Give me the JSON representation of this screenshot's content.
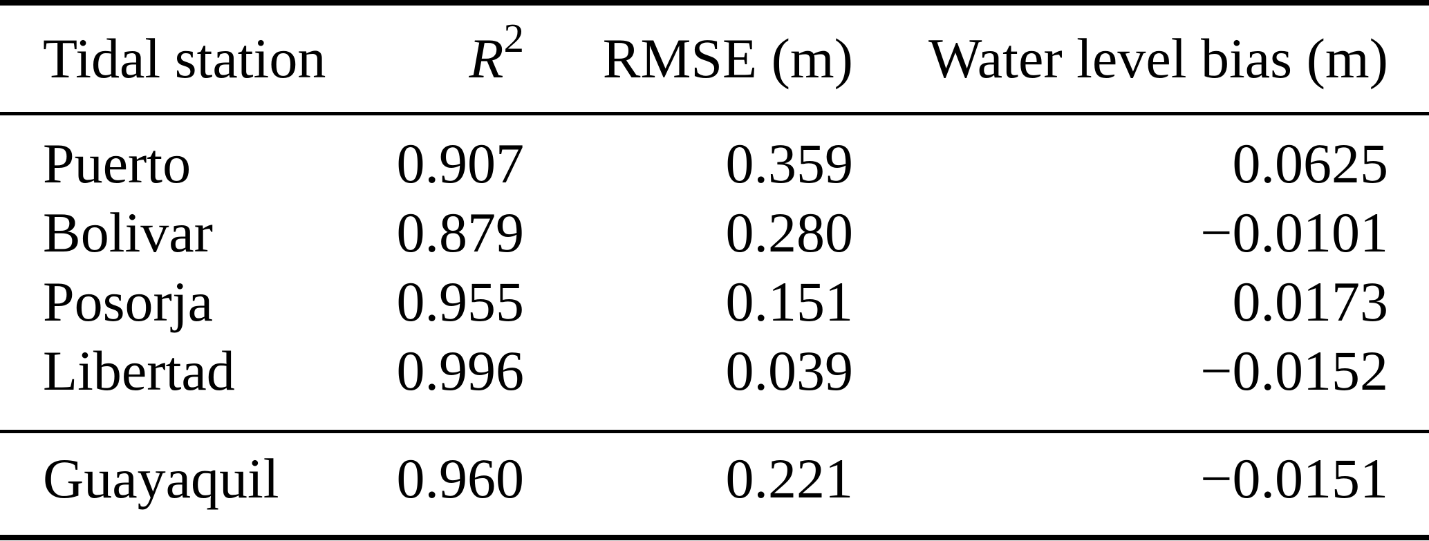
{
  "table": {
    "header": {
      "station": "Tidal station",
      "r2_base": "R",
      "r2_sup": "2",
      "rmse": "RMSE (m)",
      "bias": "Water level bias (m)"
    },
    "rows": [
      {
        "station": "Puerto",
        "r2": "0.907",
        "rmse": "0.359",
        "bias": "0.0625"
      },
      {
        "station": "Bolivar",
        "r2": "0.879",
        "rmse": "0.280",
        "bias": "−0.0101"
      },
      {
        "station": "Posorja",
        "r2": "0.955",
        "rmse": "0.151",
        "bias": "0.0173"
      },
      {
        "station": "Libertad",
        "r2": "0.996",
        "rmse": "0.039",
        "bias": "−0.0152"
      }
    ],
    "summary_row": {
      "station": "Guayaquil",
      "r2": "0.960",
      "rmse": "0.221",
      "bias": "−0.0151"
    },
    "colors": {
      "text": "#000000",
      "background": "#ffffff",
      "rule": "#000000"
    }
  }
}
